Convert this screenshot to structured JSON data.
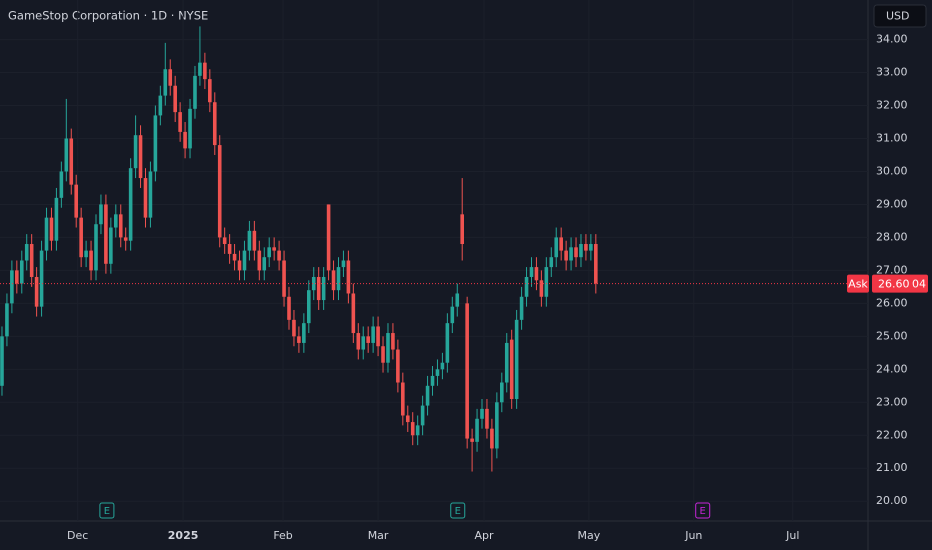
{
  "chart_data": {
    "type": "candlestick",
    "title": "GameStop Corporation · 1D · NYSE",
    "currency": "USD",
    "up_color": "#26a69a",
    "down_color": "#ef5350",
    "xlim": [
      -0.4,
      175
    ],
    "xticks": [
      {
        "value": 15.3,
        "label": "Dec"
      },
      {
        "value": 36.6,
        "label": "2025"
      },
      {
        "value": 56.8,
        "label": "Feb"
      },
      {
        "value": 76.0,
        "label": "Mar"
      },
      {
        "value": 97.4,
        "label": "Apr"
      },
      {
        "value": 118.6,
        "label": "May"
      },
      {
        "value": 139.8,
        "label": "Jun"
      },
      {
        "value": 159.8,
        "label": "Jul"
      }
    ],
    "ylim": [
      19.4,
      35.2
    ],
    "yticks": [
      {
        "value": 20,
        "label": "20.00"
      },
      {
        "value": 21,
        "label": "21.00"
      },
      {
        "value": 22,
        "label": "22.00"
      },
      {
        "value": 23,
        "label": "23.00"
      },
      {
        "value": 24,
        "label": "24.00"
      },
      {
        "value": 25,
        "label": "25.00"
      },
      {
        "value": 26,
        "label": "26.00"
      },
      {
        "value": 27,
        "label": "27.00"
      },
      {
        "value": 28,
        "label": "28.00"
      },
      {
        "value": 29,
        "label": "29.00"
      },
      {
        "value": 30,
        "label": "30.00"
      },
      {
        "value": 31,
        "label": "31.00"
      },
      {
        "value": 32,
        "label": "32.00"
      },
      {
        "value": 33,
        "label": "33.00"
      },
      {
        "value": 34,
        "label": "34.00"
      }
    ],
    "open": [
      23.5,
      25.0,
      26.0,
      27.0,
      26.6,
      27.3,
      27.8,
      26.8,
      25.9,
      27.6,
      28.6,
      27.9,
      29.2,
      30.0,
      31.0,
      29.6,
      28.6,
      27.4,
      27.6,
      27.0,
      28.4,
      29.0,
      27.2,
      28.3,
      28.7,
      28.0,
      27.9,
      30.1,
      31.1,
      29.8,
      28.6,
      30.0,
      31.7,
      32.3,
      33.1,
      32.6,
      31.8,
      31.2,
      30.7,
      31.9,
      32.9,
      33.3,
      32.8,
      32.1,
      30.8,
      28.0,
      27.8,
      27.5,
      27.3,
      27.0,
      27.6,
      28.2,
      27.6,
      27.0,
      27.4,
      27.7,
      27.6,
      27.3,
      26.2,
      25.5,
      25.0,
      24.8,
      25.4,
      26.4,
      26.8,
      26.1,
      29.0,
      27.0,
      26.4,
      27.1,
      27.3,
      26.3,
      25.1,
      24.6,
      25.0,
      24.8,
      25.3,
      24.7,
      24.2,
      25.1,
      24.6,
      23.6,
      22.6,
      22.4,
      22.0,
      22.3,
      22.9,
      23.5,
      23.8,
      24.0,
      24.2,
      25.4,
      25.9,
      28.7,
      26.0,
      21.9,
      21.8,
      22.5,
      22.8,
      22.2,
      21.6,
      23.0,
      23.6,
      24.9,
      23.1,
      25.5,
      26.2,
      26.8,
      27.1,
      26.7,
      26.2,
      27.1,
      27.4,
      28.0,
      27.6,
      27.3,
      27.7,
      27.4,
      27.8,
      27.6,
      27.8
    ],
    "high": [
      25.3,
      26.3,
      27.3,
      27.3,
      27.6,
      28.1,
      28.1,
      27.1,
      27.9,
      28.9,
      28.9,
      29.5,
      30.3,
      32.2,
      31.3,
      29.9,
      28.9,
      27.9,
      27.9,
      28.7,
      29.3,
      29.3,
      28.6,
      29.0,
      29.0,
      28.3,
      30.4,
      31.7,
      31.4,
      30.1,
      30.3,
      32.0,
      32.6,
      33.9,
      33.4,
      32.9,
      32.1,
      31.5,
      32.2,
      33.2,
      34.4,
      33.6,
      33.1,
      32.4,
      31.1,
      28.3,
      28.1,
      27.8,
      27.6,
      27.9,
      28.5,
      28.5,
      27.9,
      27.7,
      28.0,
      28.0,
      27.9,
      27.6,
      26.5,
      25.8,
      25.3,
      25.7,
      26.7,
      27.1,
      27.1,
      27.1,
      29.0,
      27.3,
      27.4,
      27.6,
      27.6,
      26.6,
      25.4,
      25.3,
      25.3,
      25.6,
      25.6,
      25.0,
      25.4,
      25.4,
      24.9,
      23.9,
      22.9,
      22.7,
      22.6,
      23.2,
      23.8,
      24.1,
      24.3,
      24.5,
      25.7,
      26.2,
      26.6,
      29.8,
      26.2,
      22.2,
      22.8,
      23.1,
      23.1,
      22.5,
      23.3,
      23.9,
      25.1,
      25.2,
      25.8,
      26.5,
      27.1,
      27.4,
      27.4,
      27.0,
      27.4,
      27.7,
      28.3,
      28.3,
      27.9,
      28.0,
      28.0,
      28.1,
      28.1,
      28.1,
      28.1
    ],
    "low": [
      23.2,
      24.7,
      25.7,
      26.3,
      26.3,
      27.0,
      26.5,
      25.6,
      25.6,
      27.3,
      27.6,
      27.6,
      28.9,
      29.7,
      29.3,
      28.3,
      27.1,
      27.1,
      26.7,
      26.7,
      28.1,
      26.9,
      26.9,
      28.0,
      27.7,
      27.6,
      27.6,
      29.8,
      29.5,
      28.3,
      28.3,
      29.7,
      31.4,
      32.0,
      32.3,
      31.5,
      30.9,
      30.4,
      30.4,
      31.6,
      32.6,
      32.5,
      31.8,
      30.5,
      27.7,
      27.5,
      27.2,
      27.0,
      26.7,
      26.7,
      27.3,
      27.3,
      26.7,
      26.7,
      27.1,
      27.3,
      27.0,
      25.9,
      25.2,
      24.7,
      24.5,
      24.5,
      25.1,
      26.1,
      25.8,
      25.8,
      26.7,
      26.1,
      26.1,
      26.8,
      26.0,
      24.8,
      24.3,
      24.3,
      24.5,
      24.5,
      24.4,
      23.9,
      23.9,
      24.3,
      23.3,
      22.3,
      22.1,
      21.7,
      21.7,
      22.0,
      22.6,
      23.2,
      23.5,
      23.7,
      23.9,
      25.1,
      25.6,
      27.3,
      21.6,
      20.9,
      21.5,
      22.2,
      21.9,
      20.9,
      21.3,
      22.7,
      23.3,
      22.8,
      22.8,
      25.2,
      25.9,
      26.5,
      26.4,
      25.9,
      25.9,
      26.8,
      27.1,
      27.3,
      27.0,
      27.0,
      27.1,
      27.1,
      27.3,
      27.3,
      26.3
    ],
    "close": [
      25.0,
      26.0,
      27.0,
      26.6,
      27.3,
      27.8,
      26.8,
      25.9,
      27.6,
      28.6,
      27.9,
      29.2,
      30.0,
      31.0,
      29.6,
      28.6,
      27.4,
      27.6,
      27.0,
      28.4,
      29.0,
      27.2,
      28.3,
      28.7,
      28.0,
      27.9,
      30.1,
      31.1,
      29.8,
      28.6,
      30.0,
      31.7,
      32.3,
      33.1,
      32.6,
      31.8,
      31.2,
      30.7,
      31.9,
      32.9,
      33.3,
      32.8,
      32.1,
      30.8,
      28.0,
      27.8,
      27.5,
      27.3,
      27.0,
      27.6,
      28.2,
      27.6,
      27.0,
      27.4,
      27.7,
      27.6,
      27.3,
      26.2,
      25.5,
      25.0,
      24.8,
      25.4,
      26.4,
      26.8,
      26.1,
      26.8,
      27.0,
      26.4,
      27.1,
      27.3,
      26.3,
      25.1,
      24.6,
      25.0,
      24.8,
      25.3,
      24.7,
      24.2,
      25.1,
      24.6,
      23.6,
      22.6,
      22.4,
      22.0,
      22.3,
      22.9,
      23.5,
      23.8,
      24.0,
      24.2,
      25.4,
      25.9,
      26.3,
      27.8,
      21.9,
      21.8,
      22.5,
      22.8,
      22.2,
      21.6,
      23.0,
      23.6,
      24.8,
      23.1,
      25.5,
      26.2,
      26.8,
      27.1,
      26.7,
      26.2,
      27.1,
      27.4,
      28.0,
      27.6,
      27.3,
      27.7,
      27.4,
      27.8,
      27.6,
      27.8,
      26.6
    ],
    "ask": {
      "label": "Ask",
      "value": 26.6,
      "value_label": "26.60",
      "extra": "04",
      "color": "#f23645"
    },
    "events": [
      {
        "label": "E",
        "x": 21.2,
        "color": "#26a69a"
      },
      {
        "label": "E",
        "x": 92.1,
        "color": "#26a69a"
      },
      {
        "label": "E",
        "x": 141.6,
        "color": "#c626d9"
      }
    ]
  }
}
